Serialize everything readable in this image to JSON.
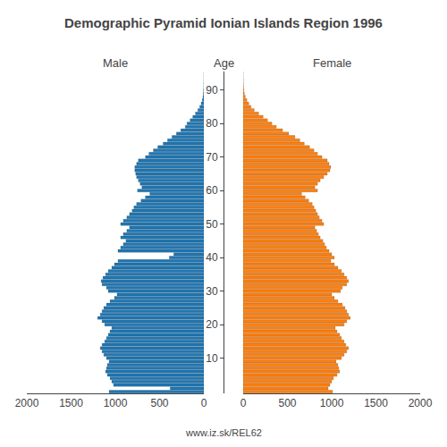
{
  "chart_data": {
    "type": "bar",
    "orientation": "horizontal",
    "title": "Demographic Pyramid Ionian Islands Region 1996",
    "ylabel": "Age",
    "annotations": [
      "www.iz.sk/REL62"
    ],
    "grid": false,
    "xlim": [
      0,
      2000
    ],
    "xticks": [
      0,
      500,
      1000,
      1500,
      2000
    ],
    "categories": [
      null,
      null,
      null,
      null,
      null,
      null,
      null,
      null,
      null,
      null,
      "10",
      null,
      null,
      null,
      null,
      null,
      null,
      null,
      null,
      null,
      "20",
      null,
      null,
      null,
      null,
      null,
      null,
      null,
      null,
      null,
      "30",
      null,
      null,
      null,
      null,
      null,
      null,
      null,
      null,
      null,
      "40",
      null,
      null,
      null,
      null,
      null,
      null,
      null,
      null,
      null,
      "50",
      null,
      null,
      null,
      null,
      null,
      null,
      null,
      null,
      null,
      "60",
      null,
      null,
      null,
      null,
      null,
      null,
      null,
      null,
      null,
      "70",
      null,
      null,
      null,
      null,
      null,
      null,
      null,
      null,
      null,
      "80",
      null,
      null,
      null,
      null,
      null,
      null,
      null,
      null,
      null,
      "90",
      null,
      null,
      null,
      null,
      null
    ],
    "series": [
      {
        "name": "Male",
        "values": [
          1070,
          380,
          1020,
          1040,
          1060,
          1090,
          1110,
          1100,
          1090,
          1070,
          1100,
          1130,
          1150,
          1170,
          1150,
          1120,
          1100,
          1080,
          1060,
          1040,
          1120,
          1150,
          1200,
          1170,
          1150,
          1130,
          1100,
          1060,
          1010,
          980,
          1080,
          1100,
          1150,
          1160,
          1140,
          1110,
          1080,
          1040,
          1010,
          970,
          390,
          340,
          970,
          940,
          910,
          880,
          940,
          910,
          870,
          840,
          940,
          910,
          870,
          840,
          810,
          790,
          760,
          710,
          660,
          610,
          750,
          700,
          720,
          740,
          760,
          770,
          780,
          780,
          760,
          740,
          660,
          620,
          570,
          520,
          460,
          410,
          360,
          310,
          260,
          210,
          190,
          155,
          125,
          95,
          68,
          46,
          30,
          18,
          10,
          5,
          3,
          1,
          1,
          0,
          0,
          0
        ]
      },
      {
        "name": "Female",
        "values": [
          1010,
          960,
          980,
          1000,
          1020,
          1060,
          1090,
          1080,
          1070,
          1050,
          1110,
          1140,
          1170,
          1190,
          1160,
          1140,
          1110,
          1090,
          1060,
          1040,
          1140,
          1170,
          1210,
          1190,
          1170,
          1150,
          1120,
          1070,
          1030,
          1000,
          1100,
          1120,
          1170,
          1190,
          1170,
          1140,
          1110,
          1070,
          1030,
          990,
          1030,
          1000,
          970,
          940,
          920,
          900,
          870,
          850,
          830,
          810,
          910,
          890,
          860,
          840,
          820,
          800,
          780,
          740,
          700,
          660,
          840,
          810,
          840,
          870,
          910,
          950,
          980,
          990,
          970,
          950,
          890,
          840,
          800,
          750,
          690,
          640,
          585,
          515,
          445,
          375,
          325,
          275,
          225,
          175,
          125,
          88,
          63,
          42,
          24,
          13,
          7,
          4,
          2,
          1,
          0,
          0
        ]
      }
    ]
  }
}
